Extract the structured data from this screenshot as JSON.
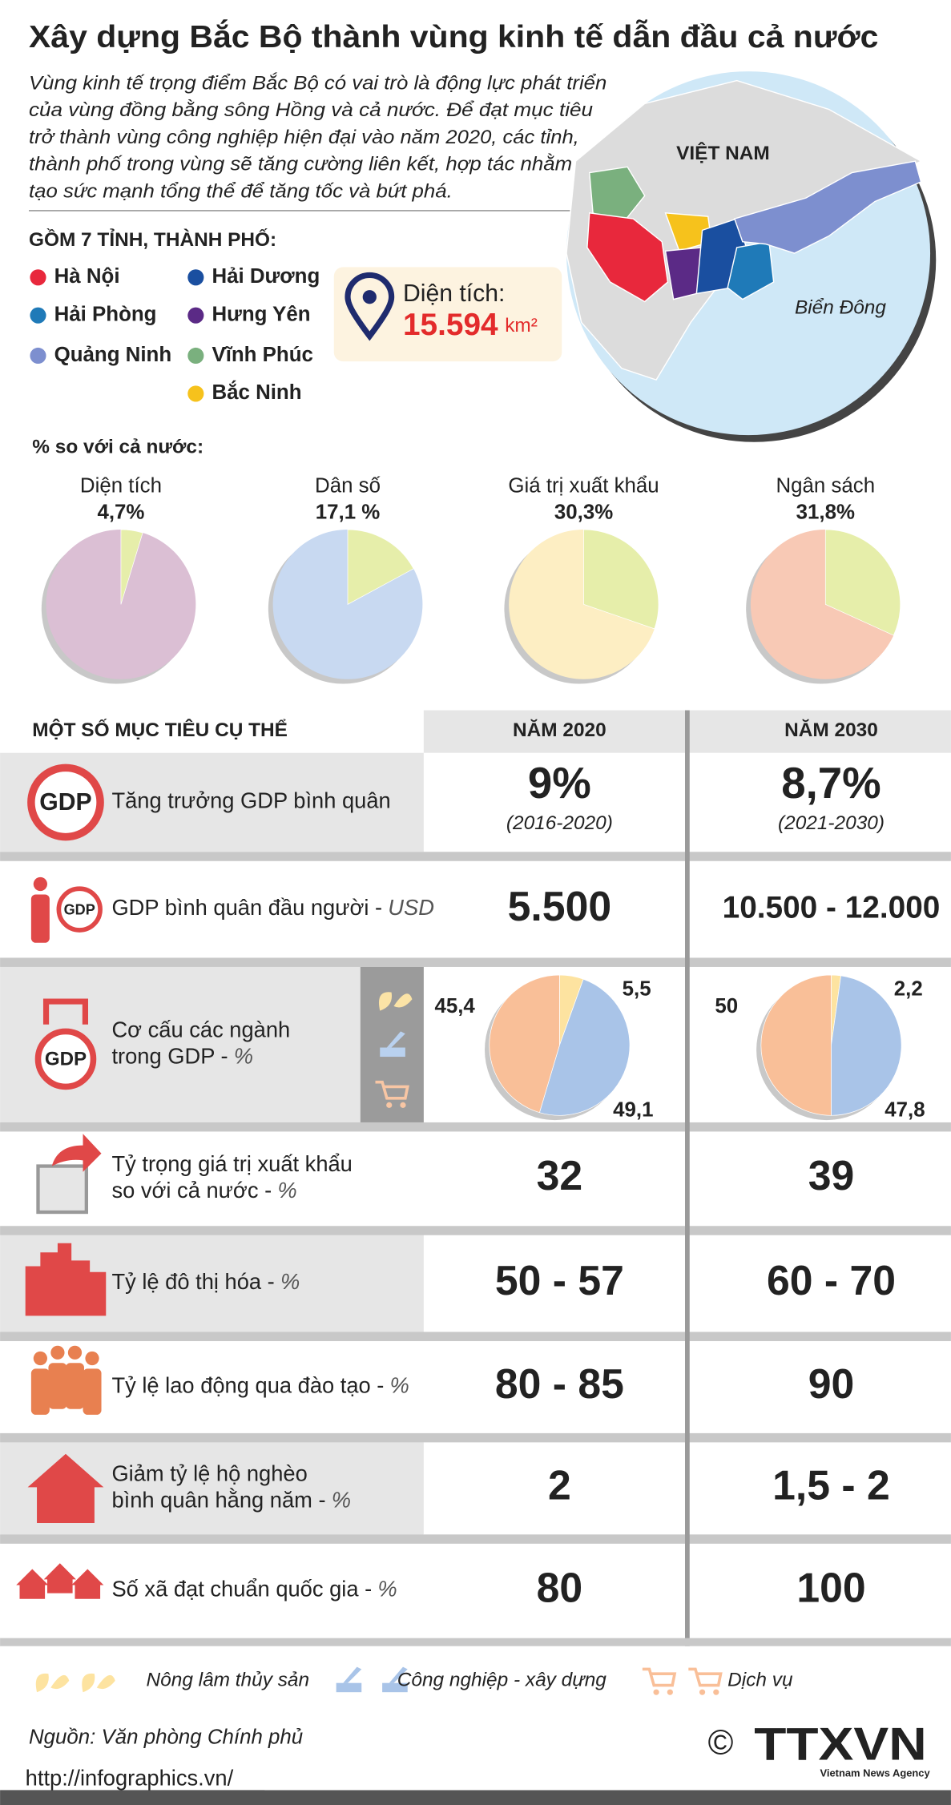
{
  "header": {
    "title": "Xây dựng Bắc Bộ thành vùng kinh tế dẫn đầu cả nước",
    "intro": [
      "Vùng kinh tế trọng điểm Bắc Bộ có vai trò là động lực phát triển",
      "của vùng đồng bằng sông Hồng và cả nước. Để đạt mục tiêu",
      "trở thành vùng công nghiệp hiện đại vào năm 2020, các tỉnh,",
      "thành phố trong vùng sẽ tăng cường liên kết, hợp tác nhằm",
      "tạo sức mạnh tổng thể để tăng tốc và bứt phá."
    ]
  },
  "map": {
    "country": "VIỆT NAM",
    "sea": "Biển Đông"
  },
  "provinces": {
    "heading": "GỒM 7 TỈNH, THÀNH PHỐ:",
    "items": [
      {
        "name": "Hà Nội",
        "color": "#e8283c"
      },
      {
        "name": "Hải Phòng",
        "color": "#1f7ab8"
      },
      {
        "name": "Quảng Ninh",
        "color": "#7d8fcf"
      },
      {
        "name": "Hải Dương",
        "color": "#1a4fa0"
      },
      {
        "name": "Hưng Yên",
        "color": "#5b2a86"
      },
      {
        "name": "Vĩnh Phúc",
        "color": "#7ab07e"
      },
      {
        "name": "Bắc Ninh",
        "color": "#f6c21c"
      }
    ]
  },
  "area": {
    "label": "Diện tích:",
    "value": "15.594",
    "unit": "km²"
  },
  "share_heading": "% so với cả nước:",
  "chart_data": [
    {
      "type": "pie",
      "title": "Diện tích",
      "values": [
        4.7
      ],
      "value_labels": [
        "4,7%"
      ],
      "colors": [
        "#e6eeaa"
      ],
      "base_color": "#dbbfd4"
    },
    {
      "type": "pie",
      "title": "Dân số",
      "values": [
        17.1
      ],
      "value_labels": [
        "17,1 %"
      ],
      "colors": [
        "#e6eeaa"
      ],
      "base_color": "#c8d9f1"
    },
    {
      "type": "pie",
      "title": "Giá trị xuất khẩu",
      "values": [
        30.3
      ],
      "value_labels": [
        "30,3%"
      ],
      "colors": [
        "#e6eeaa"
      ],
      "base_color": "#fdeec3"
    },
    {
      "type": "pie",
      "title": "Ngân sách",
      "values": [
        31.8
      ],
      "value_labels": [
        "31,8%"
      ],
      "colors": [
        "#e6eeaa"
      ],
      "base_color": "#f8c9b5"
    },
    {
      "type": "pie",
      "categories": [
        "Nông lâm thủy sản",
        "Công nghiệp - xây dựng",
        "Dịch vụ"
      ],
      "values": [
        5.5,
        49.1,
        45.4
      ],
      "value_labels": [
        "5,5",
        "49,1",
        "45,4"
      ],
      "colors": [
        "#fde3a0",
        "#a9c4e8",
        "#f9bf98"
      ]
    },
    {
      "type": "pie",
      "categories": [
        "Nông lâm thủy sản",
        "Công nghiệp - xây dựng",
        "Dịch vụ"
      ],
      "values": [
        2.2,
        47.8,
        50
      ],
      "value_labels": [
        "2,2",
        "47,8",
        "50"
      ],
      "colors": [
        "#fde3a0",
        "#a9c4e8",
        "#f9bf98"
      ]
    }
  ],
  "targets": {
    "heading": "MỘT SỐ MỤC TIÊU CỤ THỂ",
    "columns": [
      "NĂM 2020",
      "NĂM 2030"
    ],
    "icon_text": "GDP",
    "rows": [
      {
        "label": [
          "Tăng trưởng GDP bình quân"
        ],
        "v2020": "9%",
        "n2020": "(2016-2020)",
        "v2030": "8,7%",
        "n2030": "(2021-2030)"
      },
      {
        "label": [
          "GDP bình quân đầu người -"
        ],
        "unit": "USD",
        "v2020": "5.500",
        "v2030": "10.500 - 12.000"
      },
      {
        "label": [
          "Cơ cấu các ngành",
          "trong GDP -"
        ],
        "unit": "%"
      },
      {
        "label": [
          "Tỷ trọng giá trị xuất khẩu",
          "so với cả nước -"
        ],
        "unit": "%",
        "v2020": "32",
        "v2030": "39"
      },
      {
        "label": [
          "Tỷ lệ đô thị hóa -"
        ],
        "unit": "%",
        "v2020": "50 - 57",
        "v2030": "60 - 70"
      },
      {
        "label": [
          "Tỷ lệ lao động qua đào tạo -"
        ],
        "unit": "%",
        "v2020": "80 - 85",
        "v2030": "90"
      },
      {
        "label": [
          "Giảm tỷ lệ hộ nghèo",
          "bình quân hằng năm -"
        ],
        "unit": "%",
        "v2020": "2",
        "v2030": "1,5 - 2"
      },
      {
        "label": [
          "Số xã đạt chuẩn quốc gia -"
        ],
        "unit": "%",
        "v2020": "80",
        "v2030": "100"
      }
    ]
  },
  "footer": {
    "source": "Nguồn: Văn phòng Chính phủ",
    "url": "http://infographics.vn/",
    "copyright": "©",
    "logo": "TTXVN",
    "logo_sub": "Vietnam News Agency"
  }
}
